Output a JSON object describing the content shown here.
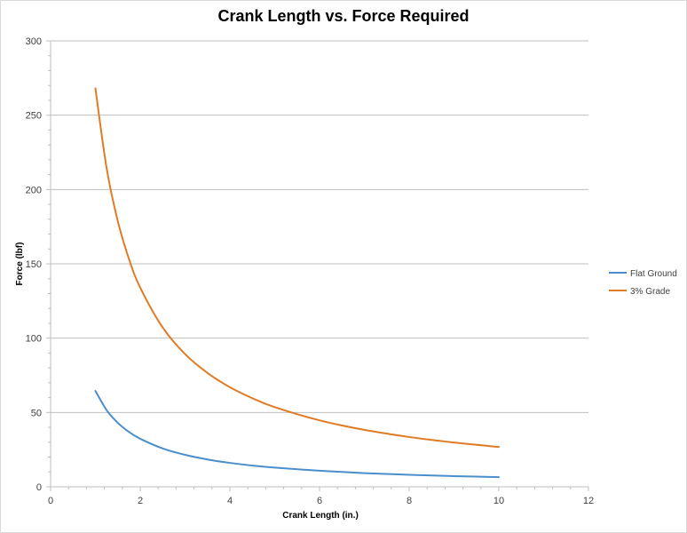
{
  "chart_data": {
    "type": "line",
    "title": "Crank Length vs. Force Required",
    "xlabel": "Crank Length (in.)",
    "ylabel": "Force (lbf)",
    "xlim": [
      0,
      12
    ],
    "ylim": [
      0,
      300
    ],
    "x_ticks": [
      0,
      2,
      4,
      6,
      8,
      10,
      12
    ],
    "y_ticks": [
      0,
      50,
      100,
      150,
      200,
      250,
      300
    ],
    "grid": "horizontal major gridlines",
    "legend_position": "right",
    "series": [
      {
        "name": "Flat Ground",
        "color": "#4a8fcc",
        "x": [
          1,
          1.25,
          1.5,
          1.75,
          2,
          2.5,
          3,
          3.5,
          4,
          4.5,
          5,
          6,
          7,
          8,
          9,
          10
        ],
        "y": [
          64.5,
          51.6,
          43,
          36.9,
          32.3,
          25.8,
          21.5,
          18.4,
          16.1,
          14.3,
          12.9,
          10.8,
          9.2,
          8.1,
          7.2,
          6.5
        ]
      },
      {
        "name": "3% Grade",
        "color": "#e07b25",
        "x": [
          1,
          1.25,
          1.5,
          1.75,
          2,
          2.5,
          3,
          3.5,
          4,
          4.5,
          5,
          6,
          7,
          8,
          9,
          10
        ],
        "y": [
          268,
          214.4,
          178.7,
          153.1,
          134,
          107.2,
          89.3,
          76.6,
          67,
          59.6,
          53.6,
          44.7,
          38.3,
          33.5,
          29.8,
          26.8
        ]
      }
    ]
  }
}
